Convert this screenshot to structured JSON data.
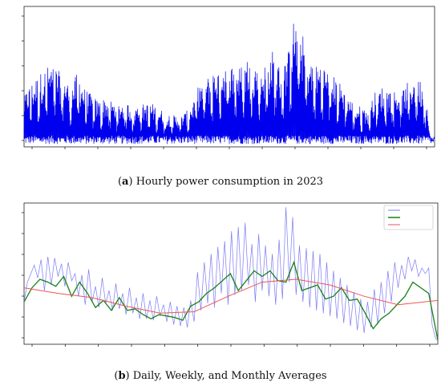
{
  "captions": {
    "a_label": "a",
    "a_text": " Hourly power consumption in 2023",
    "b_label": "b",
    "b_text": " Daily, Weekly, and Monthly Averages"
  },
  "colors": {
    "hourly": "#0000ee",
    "daily": "#7b7bf5",
    "weekly": "#168016",
    "monthly": "#ee5555",
    "axis": "#222222"
  },
  "chart_data": [
    {
      "type": "line",
      "title": "",
      "xlabel": "",
      "ylabel": "",
      "xlim": [
        0,
        365
      ],
      "ylim": [
        0,
        100
      ],
      "grid": false,
      "tick_labels_shown": false,
      "x_tick_count": 12,
      "y_tick_count": 5,
      "series": [
        {
          "color": "#0000ee",
          "envelope_x": [
            0,
            3,
            8,
            16,
            22,
            27,
            31,
            36,
            42,
            48,
            54,
            60,
            66,
            72,
            78,
            84,
            90,
            96,
            102,
            108,
            114,
            120,
            126,
            132,
            138,
            144,
            150,
            156,
            162,
            168,
            174,
            180,
            186,
            192,
            198,
            204,
            210,
            216,
            222,
            228,
            234,
            240,
            246,
            252,
            258,
            264,
            270,
            276,
            282,
            288,
            294,
            300,
            306,
            312,
            318,
            324,
            330,
            336,
            342,
            348,
            354,
            358,
            360,
            362,
            365
          ],
          "envelope_peak": [
            33,
            40,
            45,
            52,
            56,
            57,
            52,
            48,
            42,
            52,
            40,
            35,
            31,
            33,
            31,
            29,
            31,
            27,
            28,
            29,
            29,
            26,
            22,
            22,
            20,
            23,
            30,
            44,
            47,
            52,
            55,
            60,
            57,
            55,
            63,
            60,
            55,
            58,
            69,
            53,
            62,
            90,
            84,
            64,
            55,
            59,
            53,
            48,
            43,
            36,
            28,
            27,
            25,
            37,
            41,
            40,
            39,
            38,
            45,
            50,
            45,
            35,
            10,
            5,
            4
          ],
          "baseline": 2
        }
      ]
    },
    {
      "type": "line",
      "title": "",
      "xlabel": "",
      "ylabel": "",
      "xlim": [
        0,
        365
      ],
      "ylim": [
        0,
        100
      ],
      "grid": false,
      "legend": "top-right",
      "tick_labels_shown": false,
      "x_tick_count": 12,
      "y_tick_count": 6,
      "series": [
        {
          "color": "#7b7bf5",
          "x": [
            0,
            3,
            6,
            9,
            12,
            15,
            18,
            21,
            24,
            27,
            30,
            33,
            36,
            39,
            42,
            45,
            48,
            51,
            54,
            57,
            60,
            63,
            66,
            69,
            72,
            75,
            78,
            81,
            84,
            87,
            90,
            93,
            96,
            99,
            102,
            105,
            108,
            111,
            114,
            117,
            120,
            123,
            126,
            129,
            132,
            135,
            138,
            141,
            144,
            147,
            150,
            153,
            156,
            159,
            162,
            165,
            168,
            171,
            174,
            177,
            180,
            183,
            186,
            189,
            192,
            195,
            198,
            201,
            204,
            207,
            210,
            213,
            216,
            219,
            222,
            225,
            228,
            231,
            234,
            237,
            240,
            243,
            246,
            249,
            252,
            255,
            258,
            261,
            264,
            267,
            270,
            273,
            276,
            279,
            282,
            285,
            288,
            291,
            294,
            297,
            300,
            303,
            306,
            309,
            312,
            315,
            318,
            321,
            324,
            327,
            330,
            333,
            336,
            339,
            342,
            345,
            348,
            351,
            354,
            357,
            360,
            363,
            365
          ],
          "values": [
            30,
            44,
            50,
            56,
            47,
            60,
            38,
            62,
            42,
            61,
            48,
            57,
            41,
            58,
            45,
            50,
            34,
            49,
            28,
            53,
            30,
            41,
            26,
            47,
            29,
            38,
            24,
            43,
            25,
            36,
            21,
            40,
            22,
            33,
            18,
            36,
            18,
            31,
            17,
            34,
            20,
            28,
            16,
            30,
            14,
            27,
            13,
            26,
            12,
            31,
            16,
            51,
            24,
            58,
            29,
            64,
            26,
            69,
            36,
            73,
            28,
            80,
            35,
            83,
            38,
            86,
            42,
            71,
            30,
            78,
            38,
            70,
            34,
            64,
            28,
            74,
            32,
            97,
            44,
            90,
            35,
            70,
            30,
            68,
            26,
            66,
            24,
            64,
            22,
            58,
            20,
            52,
            18,
            47,
            15,
            42,
            13,
            37,
            10,
            32,
            8,
            30,
            12,
            39,
            14,
            44,
            22,
            52,
            30,
            58,
            40,
            56,
            46,
            62,
            52,
            60,
            48,
            54,
            50,
            54,
            14,
            4,
            3
          ]
        },
        {
          "color": "#168016",
          "x": [
            0,
            7,
            14,
            21,
            28,
            35,
            42,
            49,
            56,
            63,
            70,
            77,
            84,
            91,
            98,
            105,
            112,
            119,
            126,
            133,
            140,
            147,
            154,
            161,
            168,
            175,
            182,
            189,
            196,
            203,
            210,
            217,
            224,
            231,
            238,
            245,
            252,
            259,
            266,
            273,
            280,
            287,
            294,
            301,
            308,
            315,
            322,
            329,
            336,
            343,
            350,
            357,
            365
          ],
          "values": [
            30,
            40,
            46,
            44,
            41,
            48,
            34,
            44,
            36,
            26,
            31,
            24,
            33,
            24,
            25,
            21,
            18,
            21,
            20,
            19,
            17,
            27,
            30,
            36,
            40,
            45,
            50,
            38,
            45,
            52,
            48,
            52,
            45,
            44,
            58,
            38,
            40,
            42,
            32,
            34,
            40,
            31,
            32,
            22,
            11,
            18,
            22,
            28,
            34,
            44,
            40,
            36,
            3
          ]
        },
        {
          "color": "#ee5555",
          "x": [
            0,
            30,
            60,
            90,
            120,
            150,
            180,
            210,
            240,
            270,
            300,
            330,
            365
          ],
          "values": [
            40,
            36,
            33,
            27,
            22,
            23,
            34,
            44,
            46,
            42,
            34,
            28,
            31
          ]
        }
      ]
    }
  ]
}
